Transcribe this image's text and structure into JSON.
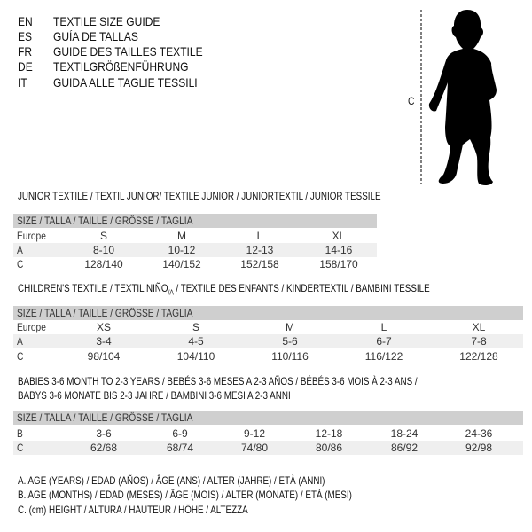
{
  "languages": [
    {
      "code": "EN",
      "text": "TEXTILE SIZE GUIDE"
    },
    {
      "code": "ES",
      "text": "GUÍA DE TALLAS"
    },
    {
      "code": "FR",
      "text": "GUIDE DES TAILLES TEXTILE"
    },
    {
      "code": "DE",
      "text": "TEXTILGRÖßENFÜHRUNG"
    },
    {
      "code": "IT",
      "text": "GUIDA ALLE TAGLIE TESSILI"
    }
  ],
  "figure": {
    "measure_label": "C"
  },
  "junior": {
    "title": "JUNIOR TEXTILE / TEXTIL JUNIOR/ TEXTILE JUNIOR / JUNIORTEXTIL / JUNIOR TESSILE",
    "header": "SIZE / TALLA / TAILLE / GRÖSSE / TAGLIA",
    "rows": [
      {
        "label": "Europe",
        "values": [
          "S",
          "M",
          "L",
          "XL"
        ]
      },
      {
        "label": "A",
        "values": [
          "8-10",
          "10-12",
          "12-13",
          "14-16"
        ]
      },
      {
        "label": "C",
        "values": [
          "128/140",
          "140/152",
          "152/158",
          "158/170"
        ]
      }
    ]
  },
  "children": {
    "title_main": "CHILDREN'S TEXTILE / TEXTIL NIÑO",
    "title_sub": "/A",
    "title_rest": " / TEXTILE DES ENFANTS / KINDERTEXTIL / BAMBINI TESSILE",
    "header": "SIZE / TALLA / TAILLE / GRÖSSE / TAGLIA",
    "rows": [
      {
        "label": "Europe",
        "values": [
          "XS",
          "S",
          "M",
          "L",
          "XL"
        ]
      },
      {
        "label": "A",
        "values": [
          "3-4",
          "4-5",
          "5-6",
          "6-7",
          "7-8"
        ]
      },
      {
        "label": "C",
        "values": [
          "98/104",
          "104/110",
          "110/116",
          "116/122",
          "122/128"
        ]
      }
    ]
  },
  "babies": {
    "title_line1": "BABIES 3-6 MONTH TO 2-3 YEARS / BEBÉS 3-6 MESES A 2-3 AÑOS / BÉBÉS 3-6 MOIS À 2-3 ANS /",
    "title_line2": "BABYS 3-6 MONATE BIS 2-3 JAHRE / BAMBINI 3-6 MESI A 2-3 ANNI",
    "header": "SIZE / TALLA / TAILLE / GRÖSSE / TAGLIA",
    "rows": [
      {
        "label": "B",
        "values": [
          "3-6",
          "6-9",
          "9-12",
          "12-18",
          "18-24",
          "24-36"
        ]
      },
      {
        "label": "C",
        "values": [
          "62/68",
          "68/74",
          "74/80",
          "80/86",
          "86/92",
          "92/98"
        ]
      }
    ]
  },
  "legend": [
    "A. AGE (YEARS) / EDAD (AÑOS) / ÂGE (ANS) / ALTER (JAHRE) / ETÀ (ANNI)",
    "B. AGE (MONTHS) / EDAD (MESES) / ÂGE (MOIS) / ALTER (MONATE) / ETÀ (MESI)",
    "C. (cm) HEIGHT / ALTURA / HAUTEUR / HÖHE / ALTEZZA"
  ],
  "colors": {
    "header_bar": "#cfcfcf",
    "row_shade": "#efefef",
    "text": "#111111"
  }
}
